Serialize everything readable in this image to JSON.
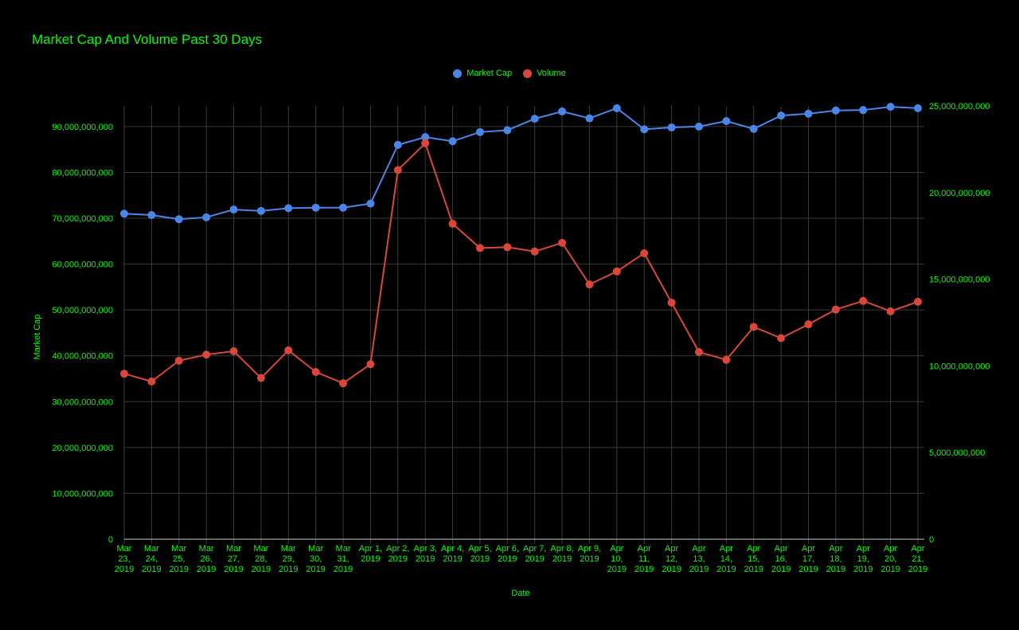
{
  "colors": {
    "background": "#000000",
    "text": "#00ff00",
    "grid": "#3a3a3a",
    "market_cap": "#4a86e8",
    "volume": "#d9473b"
  },
  "chart_data": {
    "type": "line",
    "title": "Market Cap And Volume Past 30 Days",
    "xlabel": "Date",
    "ylabel": "Market Cap",
    "ylabel_right": "",
    "legend_position": "top-center",
    "grid": true,
    "categories": [
      [
        "Mar",
        "23,",
        "2019"
      ],
      [
        "Mar",
        "24,",
        "2019"
      ],
      [
        "Mar",
        "25,",
        "2019"
      ],
      [
        "Mar",
        "26,",
        "2019"
      ],
      [
        "Mar",
        "27,",
        "2019"
      ],
      [
        "Mar",
        "28,",
        "2019"
      ],
      [
        "Mar",
        "29,",
        "2019"
      ],
      [
        "Mar",
        "30,",
        "2019"
      ],
      [
        "Mar",
        "31,",
        "2019"
      ],
      [
        "Apr 1,",
        "2019"
      ],
      [
        "Apr 2,",
        "2019"
      ],
      [
        "Apr 3,",
        "2019"
      ],
      [
        "Apr 4,",
        "2019"
      ],
      [
        "Apr 5,",
        "2019"
      ],
      [
        "Apr 6,",
        "2019"
      ],
      [
        "Apr 7,",
        "2019"
      ],
      [
        "Apr 8,",
        "2019"
      ],
      [
        "Apr 9,",
        "2019"
      ],
      [
        "Apr",
        "10,",
        "2019"
      ],
      [
        "Apr",
        "11,",
        "2019"
      ],
      [
        "Apr",
        "12,",
        "2019"
      ],
      [
        "Apr",
        "13,",
        "2019"
      ],
      [
        "Apr",
        "14,",
        "2019"
      ],
      [
        "Apr",
        "15,",
        "2019"
      ],
      [
        "Apr",
        "16,",
        "2019"
      ],
      [
        "Apr",
        "17,",
        "2019"
      ],
      [
        "Apr",
        "18,",
        "2019"
      ],
      [
        "Apr",
        "19,",
        "2019"
      ],
      [
        "Apr",
        "20,",
        "2019"
      ],
      [
        "Apr",
        "21,",
        "2019"
      ]
    ],
    "ylim_left": [
      0,
      94500000000
    ],
    "ylim_right": [
      0,
      25000000000
    ],
    "yticks_left": [
      0,
      10000000000,
      20000000000,
      30000000000,
      40000000000,
      50000000000,
      60000000000,
      70000000000,
      80000000000,
      90000000000
    ],
    "yticks_left_labels": [
      "0",
      "10,000,000,000",
      "20,000,000,000",
      "30,000,000,000",
      "40,000,000,000",
      "50,000,000,000",
      "60,000,000,000",
      "70,000,000,000",
      "80,000,000,000",
      "90,000,000,000"
    ],
    "yticks_right": [
      0,
      5000000000,
      10000000000,
      15000000000,
      20000000000,
      25000000000
    ],
    "yticks_right_labels": [
      "0",
      "5,000,000,000",
      "10,000,000,000",
      "15,000,000,000",
      "20,000,000,000",
      "25,000,000,000"
    ],
    "series": [
      {
        "name": "Market Cap",
        "axis": "left",
        "values": [
          71000000000,
          70700000000,
          69800000000,
          70200000000,
          71900000000,
          71600000000,
          72200000000,
          72300000000,
          72300000000,
          73200000000,
          86000000000,
          87700000000,
          86800000000,
          88800000000,
          89200000000,
          91700000000,
          93300000000,
          91800000000,
          94000000000,
          89400000000,
          89800000000,
          90000000000,
          91200000000,
          89500000000,
          92400000000,
          92800000000,
          93500000000,
          93600000000,
          94300000000,
          94000000000
        ]
      },
      {
        "name": "Volume",
        "axis": "right",
        "values": [
          9550000000,
          9100000000,
          10300000000,
          10650000000,
          10850000000,
          9300000000,
          10900000000,
          9650000000,
          9000000000,
          10100000000,
          21300000000,
          22850000000,
          18200000000,
          16800000000,
          16850000000,
          16600000000,
          17100000000,
          14700000000,
          15450000000,
          16500000000,
          13650000000,
          10800000000,
          10350000000,
          12250000000,
          11600000000,
          12400000000,
          13250000000,
          13750000000,
          13150000000,
          13700000000
        ]
      }
    ]
  }
}
